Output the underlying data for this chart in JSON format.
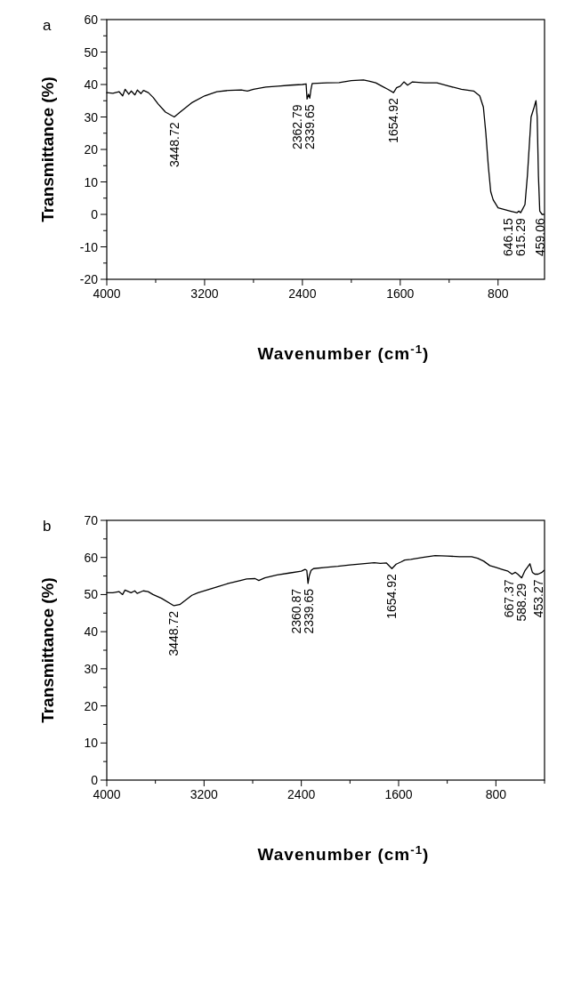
{
  "chart_data": [
    {
      "type": "line",
      "title": "a",
      "xlabel": "Wavenumber (cm$^{-1}$)",
      "ylabel": "Transmittance (%)",
      "color": "#000000",
      "x": [
        4000,
        3950,
        3900,
        3870,
        3850,
        3820,
        3800,
        3770,
        3750,
        3720,
        3700,
        3660,
        3620,
        3580,
        3520,
        3448,
        3400,
        3300,
        3200,
        3100,
        3000,
        2900,
        2850,
        2800,
        2700,
        2600,
        2500,
        2400,
        2370,
        2362,
        2350,
        2340,
        2330,
        2320,
        2200,
        2100,
        2000,
        1900,
        1850,
        1800,
        1750,
        1700,
        1655,
        1630,
        1600,
        1570,
        1540,
        1500,
        1400,
        1300,
        1200,
        1100,
        1000,
        950,
        920,
        900,
        880,
        860,
        840,
        800,
        700,
        646,
        630,
        615,
        580,
        560,
        530,
        505,
        490,
        480,
        470,
        459,
        440,
        425
      ],
      "values": [
        37.5,
        37.3,
        37.8,
        36.5,
        38.5,
        37,
        38,
        36.8,
        38.3,
        37.2,
        38.2,
        37.5,
        36,
        34,
        31.5,
        30,
        31.5,
        34.5,
        36.5,
        37.8,
        38.2,
        38.3,
        38,
        38.5,
        39.2,
        39.5,
        39.8,
        40,
        40.2,
        35.5,
        37,
        35.8,
        38.5,
        40.3,
        40.5,
        40.6,
        41.2,
        41.4,
        41,
        40.5,
        39.5,
        38.5,
        37.5,
        39,
        39.5,
        40.8,
        39.8,
        40.8,
        40.5,
        40.5,
        39.5,
        38.5,
        38,
        36.5,
        33,
        25,
        15,
        7,
        4.5,
        2,
        1,
        0.5,
        1,
        0.5,
        3,
        12,
        30,
        33,
        35,
        30,
        12,
        1,
        0,
        0
      ],
      "xlim": [
        4000,
        420
      ],
      "xticks": [
        4000,
        {
          "value": 3600,
          "label": null
        },
        3200,
        {
          "value": 2800,
          "label": null
        },
        2400,
        {
          "value": 2000,
          "label": null
        },
        1600,
        {
          "value": 1200,
          "label": null
        },
        800
      ],
      "ylim": [
        -20,
        60
      ],
      "yticks": [
        -20,
        {
          "value": -15,
          "label": null
        },
        -10,
        {
          "value": -5,
          "label": null
        },
        0,
        {
          "value": 5,
          "label": null
        },
        10,
        {
          "value": 15,
          "label": null
        },
        20,
        {
          "value": 25,
          "label": null
        },
        30,
        {
          "value": 35,
          "label": null
        },
        40,
        {
          "value": 45,
          "label": null
        },
        50,
        {
          "value": 55,
          "label": null
        },
        60
      ],
      "annotations": [
        {
          "text": "3448.72",
          "x": 3448.72,
          "y": 30
        },
        {
          "text": "2362.79",
          "x": 2362.79,
          "y": 35.5
        },
        {
          "text": "2339.65",
          "x": 2339.65,
          "y": 35.5
        },
        {
          "text": "1654.92",
          "x": 1654.92,
          "y": 37.5
        },
        {
          "text": "646.15",
          "x": 646.15,
          "y": 0.5
        },
        {
          "text": "615.29",
          "x": 615.29,
          "y": 0.5
        },
        {
          "text": "459.06",
          "x": 459.06,
          "y": 0.5
        }
      ]
    },
    {
      "type": "line",
      "title": "b",
      "xlabel": "Wavenumber (cm$^{-1}$)",
      "ylabel": "Transmittance (%)",
      "color": "#000000",
      "x": [
        4000,
        3950,
        3900,
        3870,
        3850,
        3800,
        3770,
        3750,
        3700,
        3660,
        3620,
        3550,
        3448,
        3400,
        3300,
        3250,
        3100,
        3000,
        2900,
        2850,
        2780,
        2750,
        2700,
        2600,
        2500,
        2400,
        2370,
        2355,
        2345,
        2335,
        2320,
        2300,
        2200,
        2100,
        2000,
        1900,
        1800,
        1750,
        1700,
        1655,
        1620,
        1580,
        1550,
        1500,
        1400,
        1300,
        1200,
        1100,
        1000,
        950,
        900,
        850,
        800,
        750,
        700,
        667,
        640,
        620,
        588,
        560,
        520,
        500,
        480,
        453,
        420,
        405
      ],
      "values": [
        50.5,
        50.5,
        50.8,
        50,
        51.2,
        50.5,
        51,
        50.3,
        51,
        50.8,
        50,
        49,
        47,
        47.3,
        49.8,
        50.5,
        52,
        53,
        53.8,
        54.2,
        54.3,
        53.8,
        54.5,
        55.3,
        55.8,
        56.3,
        56.8,
        56.5,
        53,
        55,
        56.5,
        57,
        57.3,
        57.6,
        58,
        58.3,
        58.6,
        58.4,
        58.5,
        57,
        58.2,
        58.8,
        59.3,
        59.5,
        60,
        60.5,
        60.4,
        60.2,
        60.2,
        59.8,
        59,
        57.8,
        57.3,
        56.8,
        56.3,
        55.5,
        56,
        55.5,
        54.5,
        56.5,
        58.3,
        56,
        55.5,
        55.5,
        56,
        56.5
      ],
      "xlim": [
        4000,
        400
      ],
      "xticks": [
        4000,
        {
          "value": 3600,
          "label": null
        },
        3200,
        {
          "value": 2800,
          "label": null
        },
        2400,
        {
          "value": 2000,
          "label": null
        },
        1600,
        {
          "value": 1200,
          "label": null
        },
        800,
        {
          "value": 400,
          "label": null
        }
      ],
      "ylim": [
        0,
        70
      ],
      "yticks": [
        0,
        {
          "value": 5,
          "label": null
        },
        10,
        {
          "value": 15,
          "label": null
        },
        20,
        {
          "value": 25,
          "label": null
        },
        30,
        {
          "value": 35,
          "label": null
        },
        40,
        {
          "value": 45,
          "label": null
        },
        50,
        {
          "value": 55,
          "label": null
        },
        60,
        {
          "value": 65,
          "label": null
        },
        70
      ],
      "annotations": [
        {
          "text": "3448.72",
          "x": 3448.72,
          "y": 47
        },
        {
          "text": "2360.87",
          "x": 2360.87,
          "y": 53
        },
        {
          "text": "2339.65",
          "x": 2339.65,
          "y": 53
        },
        {
          "text": "1654.92",
          "x": 1654.92,
          "y": 57
        },
        {
          "text": "667.37",
          "x": 667.37,
          "y": 55.5
        },
        {
          "text": "588.29",
          "x": 588.29,
          "y": 54.5
        },
        {
          "text": "453.27",
          "x": 453.27,
          "y": 55.5
        }
      ]
    }
  ]
}
